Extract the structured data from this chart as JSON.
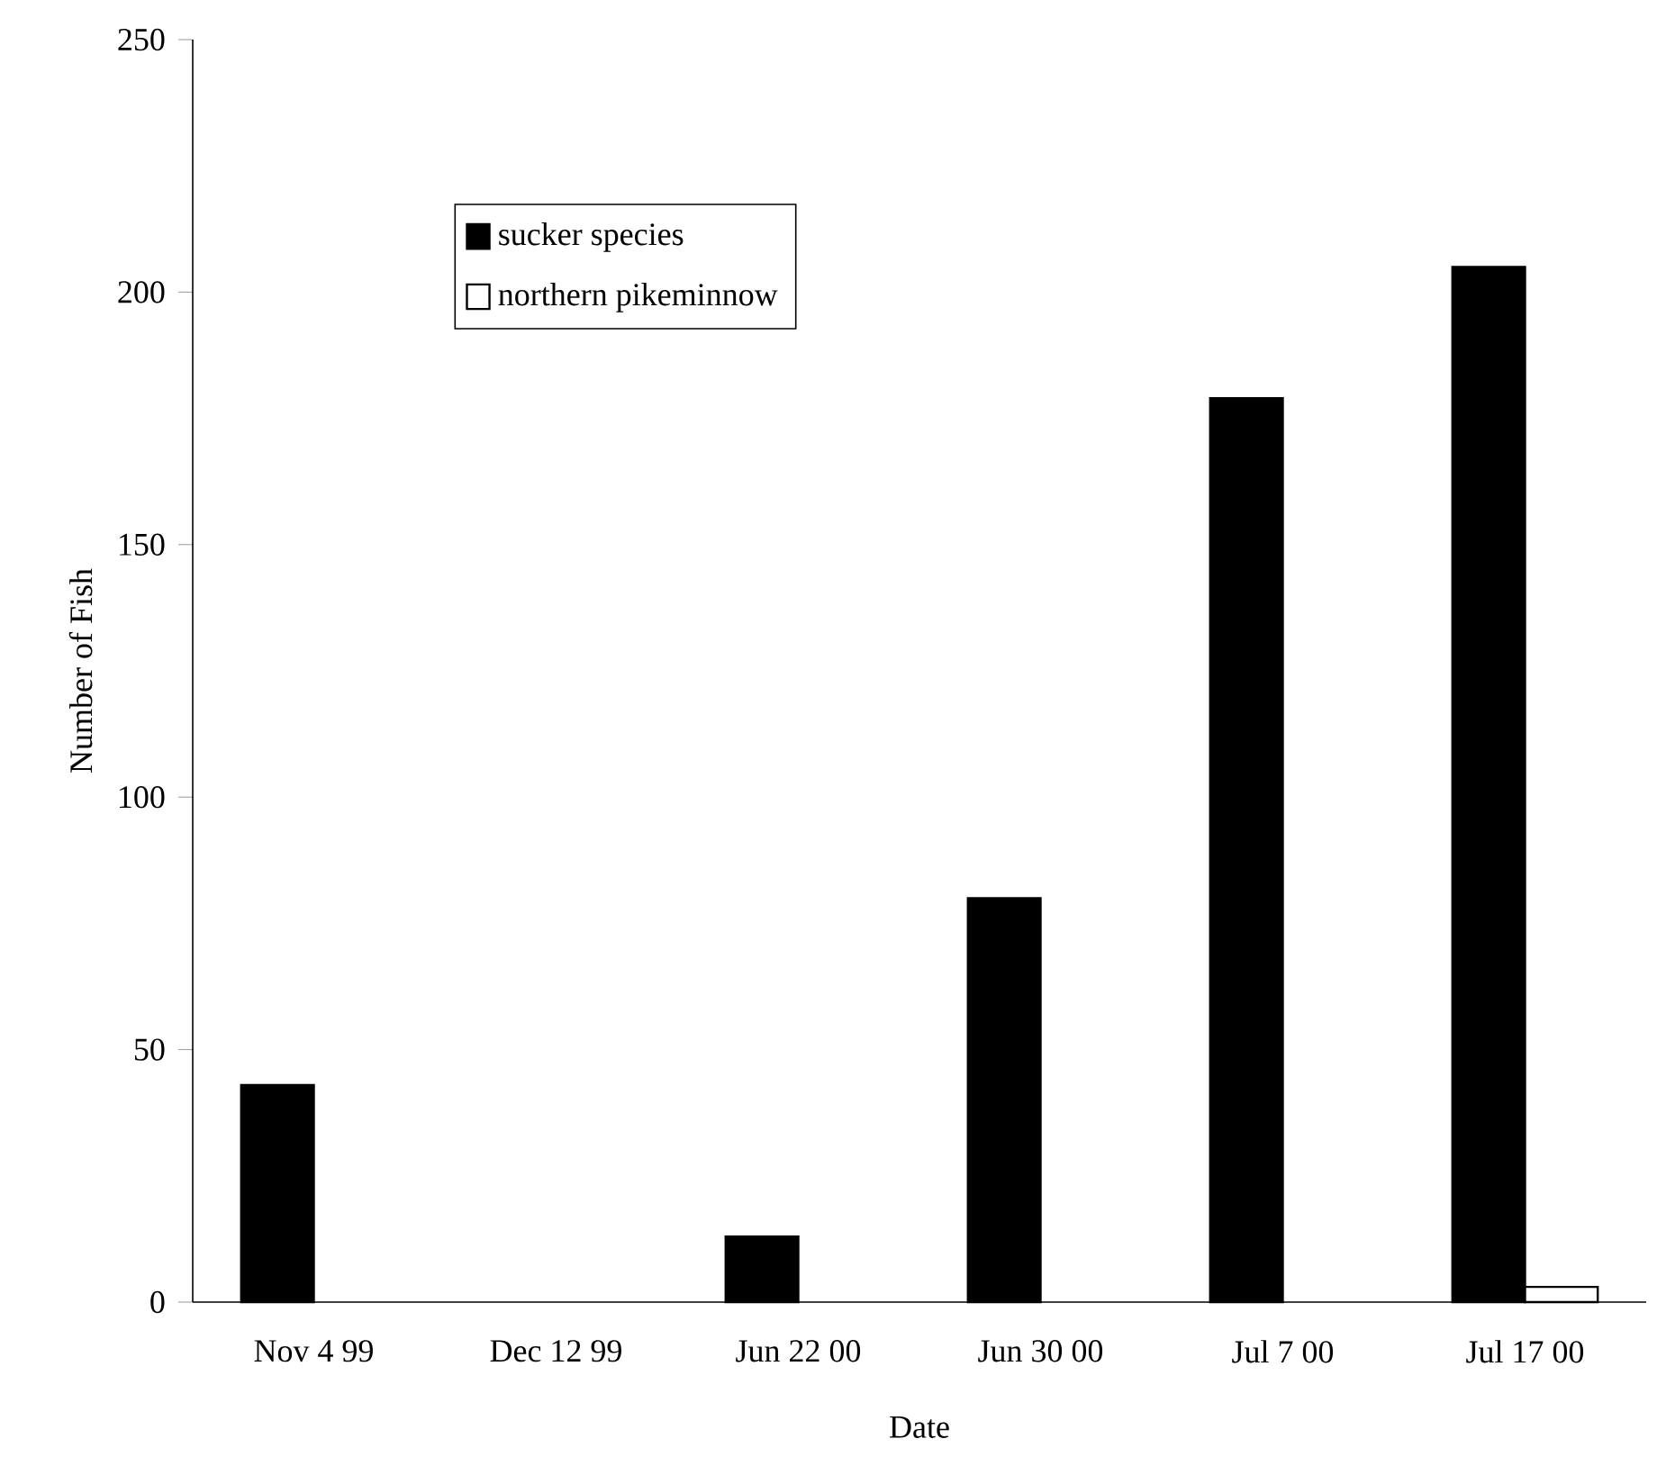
{
  "chart_data": {
    "type": "bar",
    "xlabel": "Date",
    "ylabel": "Number of Fish",
    "categories": [
      "Nov 4 99",
      "Dec 12 99",
      "Jun 22 00",
      "Jun 30 00",
      "Jul 7 00",
      "Jul 17 00"
    ],
    "series": [
      {
        "name": "sucker species",
        "color": "#000000",
        "values": [
          43,
          0,
          13,
          80,
          179,
          205
        ]
      },
      {
        "name": "northern pikeminnow",
        "color": "#ffffff",
        "values": [
          0,
          0,
          0,
          0,
          0,
          3
        ]
      }
    ],
    "ylim": [
      0,
      250
    ],
    "yticks": [
      0,
      50,
      100,
      150,
      200,
      250
    ],
    "legend": "top left",
    "grid": false
  }
}
